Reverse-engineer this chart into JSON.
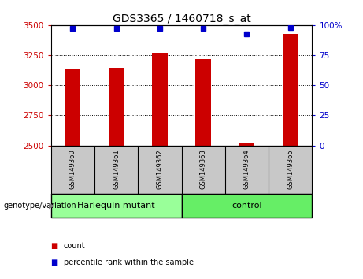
{
  "title": "GDS3365 / 1460718_s_at",
  "samples": [
    "GSM149360",
    "GSM149361",
    "GSM149362",
    "GSM149363",
    "GSM149364",
    "GSM149365"
  ],
  "counts": [
    3130,
    3145,
    3270,
    3220,
    2515,
    3430
  ],
  "percentile_ranks": [
    97,
    97,
    97,
    97,
    93,
    98
  ],
  "ylim_left": [
    2500,
    3500
  ],
  "ylim_right": [
    0,
    100
  ],
  "yticks_left": [
    2500,
    2750,
    3000,
    3250,
    3500
  ],
  "yticks_right": [
    0,
    25,
    50,
    75,
    100
  ],
  "bar_color": "#cc0000",
  "dot_color": "#0000cc",
  "groups": [
    {
      "label": "Harlequin mutant",
      "indices": [
        0,
        1,
        2
      ],
      "color": "#99ff99"
    },
    {
      "label": "control",
      "indices": [
        3,
        4,
        5
      ],
      "color": "#66ee66"
    }
  ],
  "group_label": "genotype/variation",
  "legend_count_label": "count",
  "legend_pct_label": "percentile rank within the sample",
  "background_color": "#ffffff",
  "plot_bg_color": "#ffffff",
  "tick_label_color_left": "#cc0000",
  "tick_label_color_right": "#0000cc",
  "bar_width": 0.35,
  "xlab_bg": "#c8c8c8",
  "grid_color": "#000000"
}
